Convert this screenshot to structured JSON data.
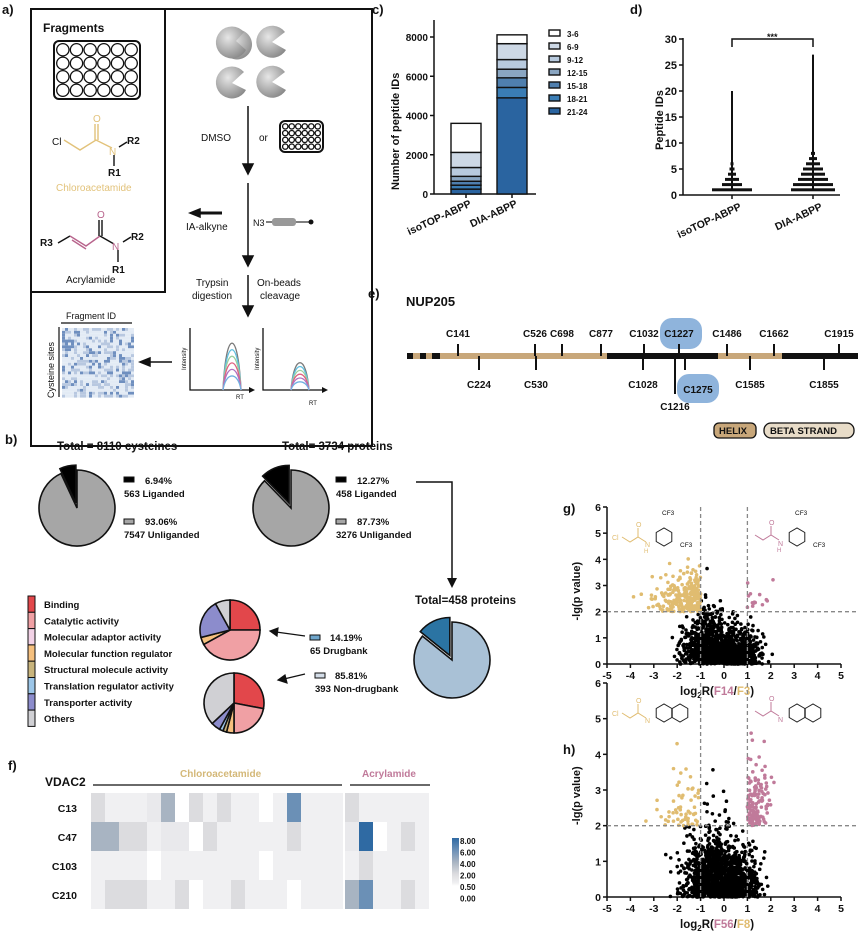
{
  "panel_labels": {
    "a": "a)",
    "b": "b)",
    "c": "c)",
    "d": "d)",
    "e": "e)",
    "f": "f)",
    "g": "g)",
    "h": "h)"
  },
  "panel_a": {
    "fragments_title": "Fragments",
    "chloroacetamide": "Chloroacetamide",
    "acrylamide": "Acrylamide",
    "atoms": {
      "cl": "Cl",
      "o": "O",
      "n": "N",
      "r1": "R1",
      "r2": "R2",
      "r3": "R3"
    },
    "dmso": "DMSO",
    "or": "or",
    "ia_alkyne": "IA-alkyne",
    "n3": "N3",
    "trypsin_1": "Trypsin",
    "trypsin_2": "digestion",
    "onbeads_1": "On-beads",
    "onbeads_2": "cleavage",
    "intensity": "Intensity",
    "rt": "RT",
    "fragment_id": "Fragment ID",
    "cysteine_sites": "Cysteine sites",
    "colors": {
      "chloroacetamide": "#e2c27a",
      "acrylamide": "#b8648c"
    }
  },
  "chart_data": [
    {
      "id": "c",
      "type": "bar",
      "stacked": true,
      "ylabel": "Number of peptide IDs",
      "ylim": [
        0,
        8000
      ],
      "yticks": [
        "0",
        "2000",
        "4000",
        "6000",
        "8000"
      ],
      "categories": [
        "isoTOP-ABPP",
        "DIA-ABPP"
      ],
      "series": [
        {
          "name": "21-24",
          "color": "#2a64a0",
          "values": [
            250,
            4900
          ]
        },
        {
          "name": "18-21",
          "color": "#3a7db5",
          "values": [
            200,
            530
          ]
        },
        {
          "name": "15-18",
          "color": "#4f7fae",
          "values": [
            200,
            490
          ]
        },
        {
          "name": "12-15",
          "color": "#8aa6c2",
          "values": [
            250,
            440
          ]
        },
        {
          "name": "9-12",
          "color": "#b8cade",
          "values": [
            450,
            490
          ]
        },
        {
          "name": "6-9",
          "color": "#cdd8e5",
          "values": [
            770,
            810
          ]
        },
        {
          "name": "3-6",
          "color": "#ffffff",
          "values": [
            1480,
            450
          ]
        }
      ]
    },
    {
      "id": "d",
      "type": "scatter",
      "ylabel": "Peptide IDs",
      "ylim": [
        0,
        30
      ],
      "yticks": [
        "0",
        "5",
        "10",
        "15",
        "20",
        "25",
        "30"
      ],
      "categories": [
        "isoTOP-ABPP",
        "DIA-ABPP"
      ],
      "max": [
        20,
        27
      ],
      "significance": "***"
    },
    {
      "id": "g",
      "type": "scatter",
      "ylabel": "-lg(p value)",
      "xlabel_prefix": "log",
      "xlabel_sub": "2",
      "xlabel_mid": "R(",
      "xlabel_num": "F14",
      "xlabel_sep": "/",
      "xlabel_den": "F3",
      "xlabel_end": ")",
      "xlim": [
        -5,
        5
      ],
      "ylim": [
        0,
        6
      ],
      "xticks": [
        "-5",
        "-4",
        "-3",
        "-2",
        "-1",
        "0",
        "1",
        "2",
        "3",
        "4",
        "5"
      ],
      "yticks": [
        "0",
        "1",
        "2",
        "3",
        "4",
        "5",
        "6"
      ],
      "thresholds": {
        "x": [
          -1,
          1
        ],
        "y": 2
      },
      "colors": {
        "base": "#000000",
        "left": "#e0bc70",
        "right": "#c07a9a"
      },
      "structure_labels": {
        "cf3": "CF3",
        "cl": "Cl",
        "o": "O",
        "n": "N",
        "h": "H"
      }
    },
    {
      "id": "h",
      "type": "scatter",
      "ylabel": "-lg(p value)",
      "xlabel_prefix": "log",
      "xlabel_sub": "2",
      "xlabel_mid": "R(",
      "xlabel_num": "F56",
      "xlabel_sep": "/",
      "xlabel_den": "F8",
      "xlabel_end": ")",
      "xlim": [
        -5,
        5
      ],
      "ylim": [
        0,
        6
      ],
      "xticks": [
        "-5",
        "-4",
        "-3",
        "-2",
        "-1",
        "0",
        "1",
        "2",
        "3",
        "4",
        "5"
      ],
      "yticks": [
        "0",
        "1",
        "2",
        "3",
        "4",
        "5",
        "6"
      ],
      "thresholds": {
        "x": [
          -1,
          1
        ],
        "y": 2
      },
      "colors": {
        "base": "#000000",
        "left": "#e0bc70",
        "right": "#c07a9a"
      },
      "structure_labels": {
        "cl": "Cl",
        "o": "O",
        "n": "N"
      }
    },
    {
      "id": "f",
      "type": "heatmap",
      "title": "VDAC2",
      "groups": [
        {
          "name": "Chloroacetamide",
          "columns": 18,
          "color": "#d4b878"
        },
        {
          "name": "Acrylamide",
          "columns": 6,
          "color": "#c07a9a"
        }
      ],
      "rows": [
        "C13",
        "C47",
        "C103",
        "C210"
      ],
      "values": [
        [
          2,
          0.5,
          0.5,
          0.5,
          1,
          4,
          0,
          2,
          0.5,
          2,
          0.5,
          0.5,
          0,
          0.5,
          6,
          0.5,
          0.5,
          0.5,
          2,
          0.5,
          0.5,
          0.5,
          0.5,
          0.5
        ],
        [
          4,
          4,
          2,
          2,
          0.5,
          1,
          1,
          0,
          2,
          0.5,
          0.5,
          0.5,
          0.5,
          0.5,
          2,
          0.5,
          0.5,
          0.5,
          1,
          8,
          0,
          0.5,
          2,
          0.5
        ],
        [
          0.5,
          0.5,
          0.5,
          0.5,
          0,
          0.5,
          0.5,
          0.5,
          0.5,
          0.5,
          0.5,
          0.5,
          0,
          0.5,
          0.5,
          0.5,
          0.5,
          0.5,
          0.5,
          2,
          0.5,
          0.5,
          0.5,
          0.5
        ],
        [
          0.5,
          2,
          2,
          2,
          0.5,
          0.5,
          2,
          0,
          0.5,
          0.5,
          2,
          0.5,
          0.5,
          0.5,
          0,
          0.5,
          0.5,
          0.5,
          4,
          6,
          0.5,
          0.5,
          2,
          0.5
        ]
      ],
      "colorbar": [
        "8.00",
        "6.00",
        "4.00",
        "2.00",
        "0.50",
        "0.00"
      ]
    },
    {
      "id": "b1",
      "type": "pie",
      "title": "Total = 8110 cysteines",
      "slices": [
        {
          "pct": "6.94%",
          "label": "563 Liganded",
          "value": 6.94,
          "color": "#000000"
        },
        {
          "pct": "93.06%",
          "label": "7547 Unliganded",
          "value": 93.06,
          "color": "#a6a6a6"
        }
      ]
    },
    {
      "id": "b2",
      "type": "pie",
      "title": "Total= 3734 proteins",
      "slices": [
        {
          "pct": "12.27%",
          "label": "458 Liganded",
          "value": 12.27,
          "color": "#000000"
        },
        {
          "pct": "87.73%",
          "label": "3276 Unliganded",
          "value": 87.73,
          "color": "#a6a6a6"
        }
      ]
    },
    {
      "id": "b3",
      "type": "pie",
      "title": "Total=458 proteins",
      "slices": [
        {
          "pct": "14.19%",
          "label": "65 Drugbank",
          "value": 14.19,
          "color": "#2b74a3"
        },
        {
          "pct": "85.81%",
          "label": "393 Non-drugbank",
          "value": 85.81,
          "color": "#a9c1d6"
        }
      ]
    },
    {
      "id": "b_go",
      "type": "pie",
      "categories": [
        "Binding",
        "Catalytic activity",
        "Molecular adaptor activity",
        "Molecular function regulator",
        "Structural molecule activity",
        "Translation regulator activity",
        "Transporter activity",
        "Others"
      ],
      "colors": [
        "#e2474b",
        "#f0a0a4",
        "#f2d2e6",
        "#f5c07e",
        "#c8b47c",
        "#9cc6e8",
        "#8c8ccc",
        "#d0d0d4"
      ],
      "series": [
        {
          "name": "65 Drugbank",
          "values": [
            25,
            42,
            0,
            4,
            0,
            0,
            21,
            8
          ]
        },
        {
          "name": "393 Non-drugbank",
          "values": [
            28,
            22,
            0,
            4,
            2,
            2,
            5,
            37
          ]
        }
      ]
    }
  ],
  "panel_e": {
    "protein": "NUP205",
    "sites_top": [
      "C141",
      "C526",
      "C698",
      "C877",
      "C1032",
      "C1227",
      "C1486",
      "C1662",
      "C1915"
    ],
    "sites_bottom": [
      "C224",
      "C530",
      "C1028",
      "C1216",
      "C1275",
      "C1585",
      "C1855"
    ],
    "highlighted": [
      "C1227",
      "C1275"
    ],
    "legend": {
      "helix": "HELIX",
      "beta": "BETA STRAND"
    },
    "colors": {
      "helix": "#c8a77a",
      "beta": "#e8dcc8",
      "highlight": "#8fb4dc"
    }
  }
}
